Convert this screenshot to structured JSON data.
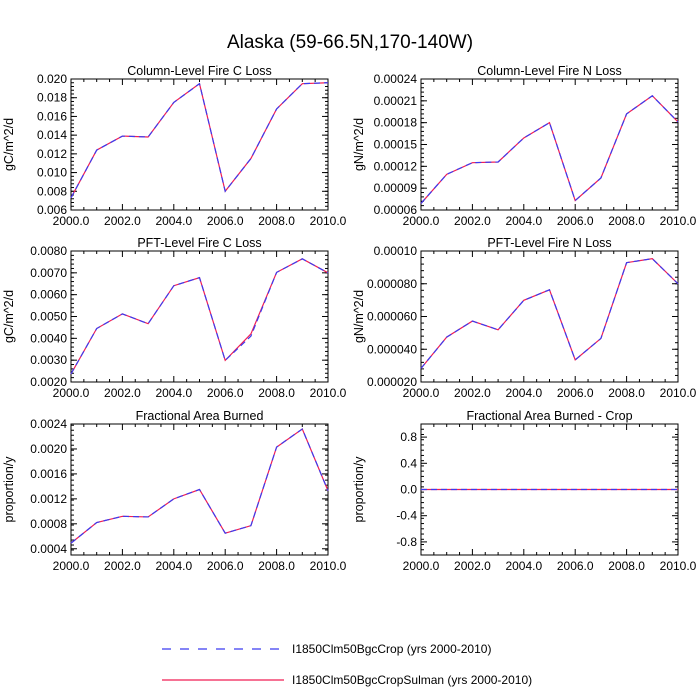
{
  "figure": {
    "title": "Alaska (59-66.5N,170-140W)"
  },
  "legend": {
    "placement": "bottom",
    "entries": [
      {
        "label": "I1850Clm50BgcCrop (yrs 2000-2010)",
        "color": "#3b3bf0",
        "style": "dashed"
      },
      {
        "label": "I1850Clm50BgcCropSulman (yrs 2000-2010)",
        "color": "#f01e55",
        "style": "solid"
      }
    ]
  },
  "chart_data": [
    {
      "type": "line",
      "title": "Column-Level Fire C Loss",
      "ylabel": "gC/m^2/d",
      "x": [
        2000,
        2001,
        2002,
        2003,
        2004,
        2005,
        2006,
        2007,
        2008,
        2009,
        2010
      ],
      "xlim": [
        2000,
        2010
      ],
      "ylim": [
        0.006,
        0.02
      ],
      "xticks": [
        "2000.0",
        "2002.0",
        "2004.0",
        "2006.0",
        "2008.0",
        "2010.0"
      ],
      "yticks": [
        0.006,
        0.008,
        0.01,
        0.012,
        0.014,
        0.016,
        0.018,
        0.02
      ],
      "ytick_labels": [
        "0.006",
        "0.008",
        "0.010",
        "0.012",
        "0.014",
        "0.016",
        "0.018",
        "0.020"
      ],
      "series": [
        {
          "name": "I1850Clm50BgcCrop (yrs 2000-2010)",
          "values": [
            0.0073,
            0.0124,
            0.0139,
            0.0138,
            0.0175,
            0.0195,
            0.008,
            0.0115,
            0.0168,
            0.0195,
            0.0196
          ]
        },
        {
          "name": "I1850Clm50BgcCropSulman (yrs 2000-2010)",
          "values": [
            0.0073,
            0.0124,
            0.0139,
            0.0138,
            0.0175,
            0.0195,
            0.008,
            0.0115,
            0.0168,
            0.0195,
            0.0196
          ]
        }
      ]
    },
    {
      "type": "line",
      "title": "Column-Level Fire N Loss",
      "ylabel": "gN/m^2/d",
      "x": [
        2000,
        2001,
        2002,
        2003,
        2004,
        2005,
        2006,
        2007,
        2008,
        2009,
        2010
      ],
      "xlim": [
        2000,
        2010
      ],
      "ylim": [
        6e-05,
        0.00024
      ],
      "xticks": [
        "2000.0",
        "2002.0",
        "2004.0",
        "2006.0",
        "2008.0",
        "2010.0"
      ],
      "yticks": [
        6e-05,
        9e-05,
        0.00012,
        0.00015,
        0.00018,
        0.00021,
        0.00024
      ],
      "ytick_labels": [
        "0.00006",
        "0.00009",
        "0.00012",
        "0.00015",
        "0.00018",
        "0.00021",
        "0.00024"
      ],
      "series": [
        {
          "name": "I1850Clm50BgcCrop (yrs 2000-2010)",
          "values": [
            6.9e-05,
            0.000109,
            0.000125,
            0.000126,
            0.000159,
            0.00018,
            7.3e-05,
            0.000104,
            0.000192,
            0.000217,
            0.000181
          ]
        },
        {
          "name": "I1850Clm50BgcCropSulman (yrs 2000-2010)",
          "values": [
            6.9e-05,
            0.000109,
            0.000125,
            0.000126,
            0.000159,
            0.00018,
            7.3e-05,
            0.000104,
            0.000192,
            0.000217,
            0.000181
          ]
        }
      ]
    },
    {
      "type": "line",
      "title": "PFT-Level Fire C Loss",
      "ylabel": "gC/m^2/d",
      "x": [
        2000,
        2001,
        2002,
        2003,
        2004,
        2005,
        2006,
        2007,
        2008,
        2009,
        2010
      ],
      "xlim": [
        2000,
        2010
      ],
      "ylim": [
        0.002,
        0.008
      ],
      "xticks": [
        "2000.0",
        "2002.0",
        "2004.0",
        "2006.0",
        "2008.0",
        "2010.0"
      ],
      "yticks": [
        0.002,
        0.003,
        0.004,
        0.005,
        0.006,
        0.007,
        0.008
      ],
      "ytick_labels": [
        "0.0020",
        "0.0030",
        "0.0040",
        "0.0050",
        "0.0060",
        "0.0070",
        "0.0080"
      ],
      "series": [
        {
          "name": "I1850Clm50BgcCrop (yrs 2000-2010)",
          "values": [
            0.00237,
            0.00445,
            0.00512,
            0.00467,
            0.00641,
            0.00678,
            0.00299,
            0.0041,
            0.00702,
            0.00764,
            0.007
          ]
        },
        {
          "name": "I1850Clm50BgcCropSulman (yrs 2000-2010)",
          "values": [
            0.00237,
            0.00445,
            0.00512,
            0.00467,
            0.00641,
            0.00678,
            0.00299,
            0.0042,
            0.00702,
            0.00764,
            0.007
          ]
        }
      ]
    },
    {
      "type": "line",
      "title": "PFT-Level Fire N Loss",
      "ylabel": "gN/m^2/d",
      "x": [
        2000,
        2001,
        2002,
        2003,
        2004,
        2005,
        2006,
        2007,
        2008,
        2009,
        2010
      ],
      "xlim": [
        2000,
        2010
      ],
      "ylim": [
        2e-05,
        0.0001
      ],
      "xticks": [
        "2000.0",
        "2002.0",
        "2004.0",
        "2006.0",
        "2008.0",
        "2010.0"
      ],
      "yticks": [
        2e-05,
        4e-05,
        6e-05,
        8e-05,
        0.0001
      ],
      "ytick_labels": [
        "0.000020",
        "0.000040",
        "0.000060",
        "0.000080",
        "0.00010"
      ],
      "series": [
        {
          "name": "I1850Clm50BgcCrop (yrs 2000-2010)",
          "values": [
            2.83e-05,
            4.74e-05,
            5.72e-05,
            5.19e-05,
            6.99e-05,
            7.63e-05,
            3.35e-05,
            4.66e-05,
            9.29e-05,
            9.53e-05,
            8e-05
          ]
        },
        {
          "name": "I1850Clm50BgcCropSulman (yrs 2000-2010)",
          "values": [
            2.83e-05,
            4.74e-05,
            5.72e-05,
            5.19e-05,
            6.99e-05,
            7.63e-05,
            3.35e-05,
            4.66e-05,
            9.29e-05,
            9.53e-05,
            8e-05
          ]
        }
      ]
    },
    {
      "type": "line",
      "title": "Fractional Area Burned",
      "ylabel": "proportion/y",
      "x": [
        2000,
        2001,
        2002,
        2003,
        2004,
        2005,
        2006,
        2007,
        2008,
        2009,
        2010
      ],
      "xlim": [
        2000,
        2010
      ],
      "ylim": [
        0.0003,
        0.0024
      ],
      "xticks": [
        "2000.0",
        "2002.0",
        "2004.0",
        "2006.0",
        "2008.0",
        "2010.0"
      ],
      "yticks": [
        0.0004,
        0.0008,
        0.0012,
        0.0016,
        0.002,
        0.0024
      ],
      "ytick_labels": [
        "0.0004",
        "0.0008",
        "0.0012",
        "0.0016",
        "0.0020",
        "0.0024"
      ],
      "series": [
        {
          "name": "I1850Clm50BgcCrop (yrs 2000-2010)",
          "values": [
            0.00049,
            0.00082,
            0.00092,
            0.00091,
            0.0012,
            0.00135,
            0.00065,
            0.00077,
            0.00203,
            0.00232,
            0.00133
          ]
        },
        {
          "name": "I1850Clm50BgcCropSulman (yrs 2000-2010)",
          "values": [
            0.00049,
            0.00082,
            0.00092,
            0.00091,
            0.0012,
            0.00135,
            0.00065,
            0.00077,
            0.00203,
            0.00232,
            0.00133
          ]
        }
      ]
    },
    {
      "type": "line",
      "title": "Fractional Area Burned - Crop",
      "ylabel": "proportion/y",
      "x": [
        2000,
        2001,
        2002,
        2003,
        2004,
        2005,
        2006,
        2007,
        2008,
        2009,
        2010
      ],
      "xlim": [
        2000,
        2010
      ],
      "ylim": [
        -1.0,
        1.0
      ],
      "xticks": [
        "2000.0",
        "2002.0",
        "2004.0",
        "2006.0",
        "2008.0",
        "2010.0"
      ],
      "yticks": [
        -0.8,
        -0.4,
        0.0,
        0.4,
        0.8
      ],
      "ytick_labels": [
        "-0.8",
        "-0.4",
        "0.0",
        "0.4",
        "0.8"
      ],
      "series": [
        {
          "name": "I1850Clm50BgcCrop (yrs 2000-2010)",
          "values": [
            0,
            0,
            0,
            0,
            0,
            0,
            0,
            0,
            0,
            0,
            0
          ]
        },
        {
          "name": "I1850Clm50BgcCropSulman (yrs 2000-2010)",
          "values": [
            0,
            0,
            0,
            0,
            0,
            0,
            0,
            0,
            0,
            0,
            0
          ]
        }
      ]
    }
  ]
}
